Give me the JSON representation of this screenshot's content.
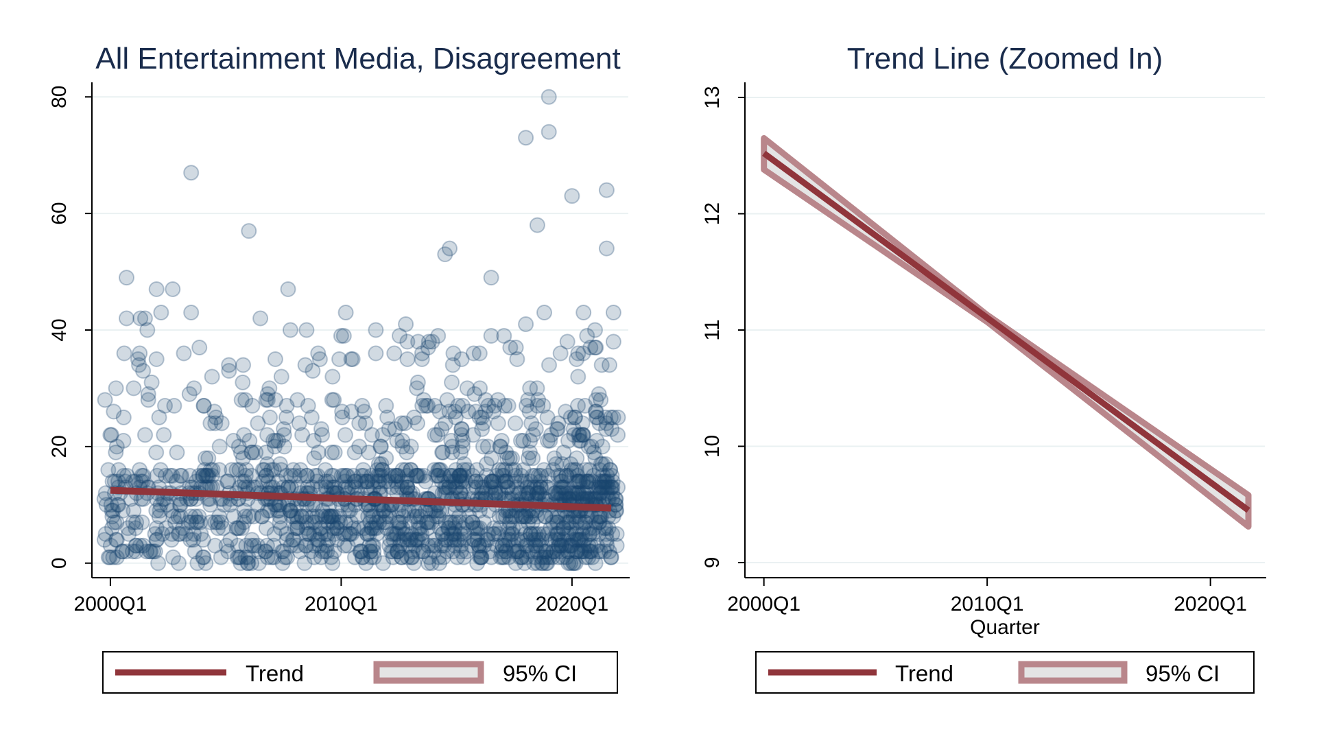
{
  "colors": {
    "points_fill": "#1a476f",
    "trend": "#90353b",
    "ci_band_edge": "#b9868b",
    "ci_band_fill": "#e4e4e4",
    "title": "#1a2c4c",
    "grid": "#eaf1f2",
    "axis": "#000000"
  },
  "chart_data": [
    {
      "type": "scatter",
      "title": "All Entertainment Media, Disagreement",
      "xlabel": "",
      "ylabel": "",
      "x_ticks": [
        "2000Q1",
        "2010Q1",
        "2020Q1"
      ],
      "x_tick_values": [
        2000.0,
        2010.0,
        2020.0
      ],
      "xlim": [
        1999.2,
        2022.5
      ],
      "y_ticks": [
        "0",
        "20",
        "40",
        "60",
        "80"
      ],
      "y_tick_values": [
        0,
        20,
        40,
        60,
        80
      ],
      "ylim": [
        -2.5,
        82.5
      ],
      "grid": true,
      "series": [
        {
          "kind": "points",
          "x_range": [
            1999.7,
            2022.0
          ],
          "notable_points": [
            [
              2003.5,
              67
            ],
            [
              2006.0,
              57
            ],
            [
              2014.5,
              53
            ],
            [
              2014.7,
              54
            ],
            [
              2016.5,
              49
            ],
            [
              2018.0,
              73
            ],
            [
              2018.5,
              58
            ],
            [
              2019.0,
              74
            ],
            [
              2019.0,
              80
            ],
            [
              2020.0,
              63
            ],
            [
              2021.5,
              64
            ],
            [
              2021.5,
              54
            ],
            [
              2020.5,
              43
            ],
            [
              2021.8,
              43
            ],
            [
              2021.8,
              38
            ],
            [
              2000.7,
              49
            ],
            [
              2002.0,
              47
            ],
            [
              2002.7,
              47
            ],
            [
              2007.7,
              47
            ],
            [
              2010.2,
              43
            ],
            [
              2003.5,
              43
            ],
            [
              2002.2,
              43
            ],
            [
              2000.7,
              42
            ],
            [
              2001.3,
              42
            ],
            [
              2001.5,
              42
            ],
            [
              2006.5,
              42
            ],
            [
              2012.8,
              41
            ],
            [
              2018.0,
              41
            ],
            [
              2018.8,
              43
            ],
            [
              2011.5,
              40
            ],
            [
              2010.0,
              39
            ],
            [
              2008.5,
              40
            ],
            [
              2007.8,
              40
            ],
            [
              2016.5,
              39
            ],
            [
              2014.2,
              39
            ],
            [
              2013.8,
              38
            ],
            [
              2019.8,
              38
            ],
            [
              2020.8,
              37
            ],
            [
              2021.0,
              37
            ],
            [
              2021.0,
              40
            ],
            [
              2000.6,
              36
            ],
            [
              2001.2,
              35
            ],
            [
              2002.0,
              35
            ],
            [
              2009.0,
              36
            ],
            [
              2011.5,
              36
            ],
            [
              2012.3,
              36
            ],
            [
              2016.0,
              36
            ],
            [
              2013.5,
              35
            ],
            [
              2010.5,
              35
            ],
            [
              2020.2,
              35
            ]
          ]
        },
        {
          "kind": "line",
          "name": "Trend",
          "x": [
            2000.0,
            2021.7
          ],
          "y": [
            12.5,
            9.45
          ]
        }
      ]
    },
    {
      "type": "line",
      "title": "Trend Line (Zoomed In)",
      "xlabel": "Quarter",
      "ylabel": "",
      "x_ticks": [
        "2000Q1",
        "2010Q1",
        "2020Q1"
      ],
      "x_tick_values": [
        2000.0,
        2010.0,
        2020.0
      ],
      "xlim": [
        1999.15,
        2022.5
      ],
      "y_ticks": [
        "9",
        "10",
        "11",
        "12",
        "13"
      ],
      "y_tick_values": [
        9,
        10,
        11,
        12,
        13
      ],
      "ylim": [
        8.87,
        13.13
      ],
      "grid": true,
      "series": [
        {
          "kind": "band",
          "name": "95% CI",
          "x": [
            2000.0,
            2010.0,
            2021.7
          ],
          "upper": [
            12.65,
            11.13,
            9.58
          ],
          "lower": [
            12.38,
            11.07,
            9.31
          ]
        },
        {
          "kind": "line",
          "name": "Trend",
          "x": [
            2000.0,
            2021.7
          ],
          "y": [
            12.52,
            9.45
          ]
        }
      ]
    }
  ],
  "legends": [
    {
      "trend_label": "Trend",
      "ci_label": "95% CI"
    },
    {
      "trend_label": "Trend",
      "ci_label": "95% CI"
    }
  ]
}
